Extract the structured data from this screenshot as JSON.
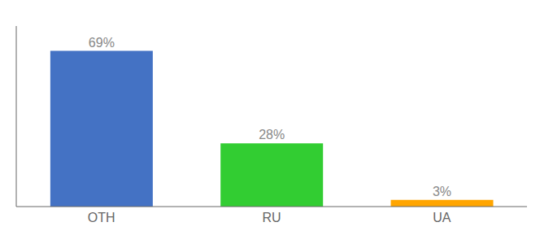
{
  "chart_data": {
    "type": "bar",
    "categories": [
      "OTH",
      "RU",
      "UA"
    ],
    "values": [
      69,
      28,
      3
    ],
    "value_labels": [
      "69%",
      "28%",
      "3%"
    ],
    "data_labels": true,
    "colors": [
      "#4472C4",
      "#32CD32",
      "#FFA500"
    ],
    "ylim": [
      0,
      80
    ],
    "grid": false,
    "tick_labels": "x"
  }
}
